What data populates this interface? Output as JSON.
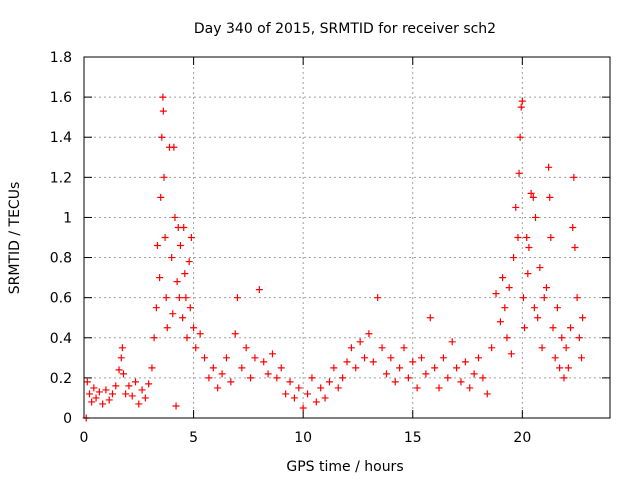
{
  "chart_data": {
    "type": "scatter",
    "title": "Day 340 of 2015, SRMTID for receiver sch2",
    "xlabel": "GPS time / hours",
    "ylabel": "SRMTID / TECUs",
    "xlim": [
      0,
      24
    ],
    "ylim": [
      0,
      1.8
    ],
    "xticks": [
      0,
      5,
      10,
      15,
      20
    ],
    "xtick_labels": [
      "0",
      "5",
      "10",
      "15",
      "20"
    ],
    "yticks": [
      0,
      0.2,
      0.4,
      0.6,
      0.8,
      1,
      1.2,
      1.4,
      1.6,
      1.8
    ],
    "ytick_labels": [
      "0",
      "0.2",
      "0.4",
      "0.6",
      "0.8",
      "1",
      "1.2",
      "1.4",
      "1.6",
      "1.8"
    ],
    "grid": true,
    "marker": "+",
    "color": "#ff0000",
    "series": [
      {
        "name": "sch2",
        "points": [
          [
            0.1,
            0.0
          ],
          [
            0.15,
            0.18
          ],
          [
            0.25,
            0.12
          ],
          [
            0.35,
            0.08
          ],
          [
            0.45,
            0.15
          ],
          [
            0.55,
            0.1
          ],
          [
            0.7,
            0.13
          ],
          [
            0.85,
            0.07
          ],
          [
            1.0,
            0.14
          ],
          [
            1.15,
            0.09
          ],
          [
            1.3,
            0.12
          ],
          [
            1.45,
            0.16
          ],
          [
            1.6,
            0.24
          ],
          [
            1.7,
            0.3
          ],
          [
            1.75,
            0.35
          ],
          [
            1.8,
            0.22
          ],
          [
            1.9,
            0.12
          ],
          [
            2.05,
            0.16
          ],
          [
            2.2,
            0.11
          ],
          [
            2.35,
            0.18
          ],
          [
            2.5,
            0.07
          ],
          [
            2.65,
            0.14
          ],
          [
            2.8,
            0.1
          ],
          [
            2.95,
            0.17
          ],
          [
            3.1,
            0.25
          ],
          [
            3.2,
            0.4
          ],
          [
            3.3,
            0.55
          ],
          [
            3.35,
            0.86
          ],
          [
            3.45,
            0.7
          ],
          [
            3.5,
            1.1
          ],
          [
            3.55,
            1.4
          ],
          [
            3.6,
            1.6
          ],
          [
            3.62,
            1.53
          ],
          [
            3.65,
            1.2
          ],
          [
            3.7,
            0.9
          ],
          [
            3.75,
            0.6
          ],
          [
            3.8,
            0.45
          ],
          [
            3.9,
            1.35
          ],
          [
            4.0,
            0.8
          ],
          [
            4.05,
            0.52
          ],
          [
            4.1,
            1.35
          ],
          [
            4.15,
            1.0
          ],
          [
            4.2,
            0.06
          ],
          [
            4.25,
            0.68
          ],
          [
            4.3,
            0.95
          ],
          [
            4.35,
            0.6
          ],
          [
            4.4,
            0.86
          ],
          [
            4.5,
            0.5
          ],
          [
            4.55,
            0.95
          ],
          [
            4.6,
            0.72
          ],
          [
            4.65,
            0.6
          ],
          [
            4.7,
            0.4
          ],
          [
            4.8,
            0.78
          ],
          [
            4.85,
            0.55
          ],
          [
            4.9,
            0.9
          ],
          [
            5.0,
            0.45
          ],
          [
            5.1,
            0.35
          ],
          [
            5.3,
            0.42
          ],
          [
            5.5,
            0.3
          ],
          [
            5.7,
            0.2
          ],
          [
            5.9,
            0.25
          ],
          [
            6.1,
            0.15
          ],
          [
            6.3,
            0.22
          ],
          [
            6.5,
            0.3
          ],
          [
            6.7,
            0.18
          ],
          [
            6.9,
            0.42
          ],
          [
            7.0,
            0.6
          ],
          [
            7.2,
            0.25
          ],
          [
            7.4,
            0.35
          ],
          [
            7.6,
            0.2
          ],
          [
            7.8,
            0.3
          ],
          [
            8.0,
            0.64
          ],
          [
            8.2,
            0.28
          ],
          [
            8.4,
            0.22
          ],
          [
            8.6,
            0.32
          ],
          [
            8.8,
            0.2
          ],
          [
            9.0,
            0.25
          ],
          [
            9.2,
            0.12
          ],
          [
            9.4,
            0.18
          ],
          [
            9.6,
            0.1
          ],
          [
            9.8,
            0.15
          ],
          [
            10.0,
            0.05
          ],
          [
            10.2,
            0.12
          ],
          [
            10.4,
            0.2
          ],
          [
            10.6,
            0.08
          ],
          [
            10.8,
            0.15
          ],
          [
            11.0,
            0.1
          ],
          [
            11.2,
            0.18
          ],
          [
            11.4,
            0.25
          ],
          [
            11.6,
            0.15
          ],
          [
            11.8,
            0.2
          ],
          [
            12.0,
            0.28
          ],
          [
            12.2,
            0.35
          ],
          [
            12.4,
            0.25
          ],
          [
            12.6,
            0.38
          ],
          [
            12.8,
            0.3
          ],
          [
            13.0,
            0.42
          ],
          [
            13.2,
            0.28
          ],
          [
            13.4,
            0.6
          ],
          [
            13.6,
            0.35
          ],
          [
            13.8,
            0.22
          ],
          [
            14.0,
            0.3
          ],
          [
            14.2,
            0.18
          ],
          [
            14.4,
            0.25
          ],
          [
            14.6,
            0.35
          ],
          [
            14.8,
            0.2
          ],
          [
            15.0,
            0.28
          ],
          [
            15.2,
            0.15
          ],
          [
            15.4,
            0.3
          ],
          [
            15.6,
            0.22
          ],
          [
            15.8,
            0.5
          ],
          [
            16.0,
            0.25
          ],
          [
            16.2,
            0.15
          ],
          [
            16.4,
            0.3
          ],
          [
            16.6,
            0.2
          ],
          [
            16.8,
            0.38
          ],
          [
            17.0,
            0.25
          ],
          [
            17.2,
            0.18
          ],
          [
            17.4,
            0.28
          ],
          [
            17.6,
            0.15
          ],
          [
            17.8,
            0.22
          ],
          [
            18.0,
            0.3
          ],
          [
            18.2,
            0.2
          ],
          [
            18.4,
            0.12
          ],
          [
            18.6,
            0.35
          ],
          [
            18.8,
            0.62
          ],
          [
            19.0,
            0.48
          ],
          [
            19.1,
            0.7
          ],
          [
            19.2,
            0.55
          ],
          [
            19.3,
            0.4
          ],
          [
            19.4,
            0.65
          ],
          [
            19.5,
            0.32
          ],
          [
            19.6,
            0.8
          ],
          [
            19.7,
            1.05
          ],
          [
            19.8,
            0.9
          ],
          [
            19.85,
            1.22
          ],
          [
            19.9,
            1.4
          ],
          [
            19.95,
            1.55
          ],
          [
            20.0,
            1.58
          ],
          [
            20.05,
            0.6
          ],
          [
            20.1,
            0.45
          ],
          [
            20.2,
            0.9
          ],
          [
            20.25,
            0.72
          ],
          [
            20.3,
            0.85
          ],
          [
            20.4,
            1.12
          ],
          [
            20.5,
            1.1
          ],
          [
            20.55,
            0.55
          ],
          [
            20.6,
            1.0
          ],
          [
            20.7,
            0.5
          ],
          [
            20.8,
            0.75
          ],
          [
            20.9,
            0.35
          ],
          [
            21.0,
            0.6
          ],
          [
            21.1,
            0.65
          ],
          [
            21.2,
            1.25
          ],
          [
            21.25,
            1.1
          ],
          [
            21.3,
            0.9
          ],
          [
            21.4,
            0.45
          ],
          [
            21.5,
            0.3
          ],
          [
            21.6,
            0.55
          ],
          [
            21.7,
            0.25
          ],
          [
            21.8,
            0.4
          ],
          [
            21.9,
            0.2
          ],
          [
            22.0,
            0.35
          ],
          [
            22.1,
            0.25
          ],
          [
            22.2,
            0.45
          ],
          [
            22.3,
            0.95
          ],
          [
            22.35,
            1.2
          ],
          [
            22.4,
            0.85
          ],
          [
            22.5,
            0.6
          ],
          [
            22.6,
            0.4
          ],
          [
            22.7,
            0.3
          ],
          [
            22.75,
            0.5
          ]
        ]
      }
    ]
  }
}
